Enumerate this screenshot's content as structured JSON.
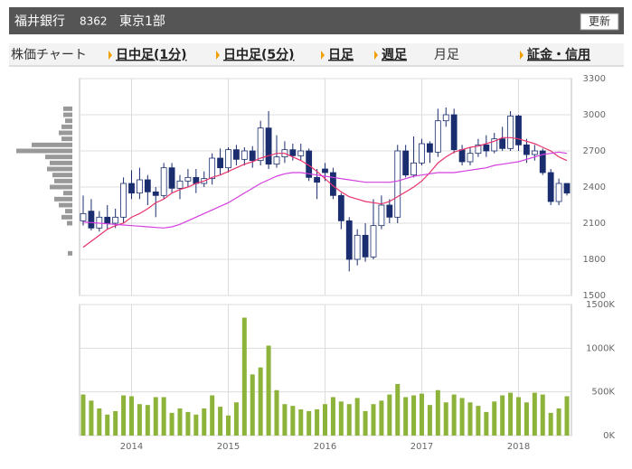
{
  "header": {
    "name": "福井銀行",
    "code": "8362",
    "market": "東京1部",
    "button": "更新"
  },
  "tabs": {
    "label": "株価チャート",
    "items": [
      "日中足(1分)",
      "日中足(5分)",
      "日足",
      "週足",
      "月足",
      "証金・信用"
    ],
    "selected": 4
  },
  "chart_data": [
    {
      "type": "candlestick",
      "categories": [
        null,
        null,
        null,
        null,
        null,
        null,
        "2014",
        null,
        null,
        null,
        null,
        null,
        null,
        null,
        null,
        null,
        null,
        null,
        "2015",
        null,
        null,
        null,
        null,
        null,
        null,
        null,
        null,
        null,
        null,
        null,
        "2016",
        null,
        null,
        null,
        null,
        null,
        null,
        null,
        null,
        null,
        null,
        null,
        "2017",
        null,
        null,
        null,
        null,
        null,
        null,
        null,
        null,
        null,
        null,
        null,
        "2018",
        null,
        null,
        null,
        null,
        null,
        null
      ],
      "open": [
        2120,
        2200,
        2060,
        2150,
        2100,
        2150,
        2430,
        2350,
        2460,
        2360,
        2330,
        2560,
        2390,
        2450,
        2480,
        2430,
        2470,
        2640,
        2560,
        2710,
        2630,
        2700,
        2620,
        2890,
        2590,
        2650,
        2710,
        2660,
        2700,
        2480,
        2550,
        2520,
        2330,
        2120,
        1800,
        2000,
        1820,
        2080,
        2250,
        2150,
        2700,
        2500,
        2600,
        2760,
        2690,
        2950,
        3000,
        2710,
        2610,
        2680,
        2750,
        2700,
        2800,
        2720,
        2990,
        2750,
        2670,
        2700,
        2520,
        2280,
        2430
      ],
      "high": [
        2330,
        2300,
        2200,
        2250,
        2220,
        2480,
        2540,
        2560,
        2500,
        2400,
        2600,
        2600,
        2500,
        2550,
        2550,
        2530,
        2680,
        2720,
        2730,
        2750,
        2730,
        2740,
        2950,
        3030,
        2830,
        2780,
        2760,
        2760,
        2720,
        2550,
        2600,
        2560,
        2350,
        2150,
        2050,
        2100,
        2300,
        2330,
        2300,
        2750,
        2750,
        2820,
        2800,
        2780,
        3050,
        3060,
        3050,
        2750,
        2730,
        2800,
        2830,
        2850,
        2900,
        3030,
        3000,
        2800,
        2750,
        2720,
        2550,
        2470,
        2430
      ],
      "low": [
        2080,
        2040,
        2030,
        2050,
        2060,
        2100,
        2300,
        2300,
        2250,
        2150,
        2300,
        2350,
        2300,
        2400,
        2350,
        2400,
        2420,
        2500,
        2520,
        2580,
        2580,
        2560,
        2580,
        2550,
        2560,
        2600,
        2620,
        2620,
        2450,
        2300,
        2450,
        2300,
        2050,
        1700,
        1750,
        1780,
        1800,
        2050,
        2100,
        2100,
        2480,
        2480,
        2580,
        2600,
        2650,
        2900,
        2680,
        2580,
        2580,
        2650,
        2650,
        2680,
        2700,
        2700,
        2700,
        2600,
        2620,
        2500,
        2250,
        2250,
        2330
      ],
      "close": [
        2180,
        2060,
        2150,
        2100,
        2150,
        2430,
        2350,
        2460,
        2360,
        2330,
        2560,
        2390,
        2450,
        2480,
        2430,
        2470,
        2640,
        2560,
        2710,
        2630,
        2700,
        2620,
        2890,
        2590,
        2650,
        2710,
        2660,
        2700,
        2480,
        2440,
        2520,
        2330,
        2120,
        1800,
        2000,
        1820,
        2080,
        2250,
        2150,
        2700,
        2500,
        2600,
        2760,
        2690,
        2950,
        3000,
        2710,
        2610,
        2680,
        2750,
        2700,
        2800,
        2720,
        2990,
        2750,
        2670,
        2700,
        2520,
        2280,
        2430,
        2350
      ],
      "up_color": "#ffffff",
      "down_color": "#1a2d6e",
      "edge_color": "#1a2d6e",
      "series": [
        {
          "color": "#e8336b",
          "values": [
            1900,
            1950,
            2000,
            2050,
            2080,
            2100,
            2150,
            2180,
            2220,
            2270,
            2300,
            2350,
            2380,
            2400,
            2430,
            2450,
            2480,
            2500,
            2530,
            2560,
            2590,
            2610,
            2640,
            2660,
            2680,
            2680,
            2650,
            2620,
            2580,
            2530,
            2470,
            2410,
            2360,
            2320,
            2300,
            2280,
            2270,
            2260,
            2280,
            2320,
            2360,
            2400,
            2450,
            2520,
            2600,
            2650,
            2690,
            2710,
            2730,
            2740,
            2760,
            2780,
            2810,
            2810,
            2800,
            2780,
            2760,
            2730,
            2700,
            2650,
            2620
          ]
        },
        {
          "color": "#d53ee0",
          "values": [
            2110,
            2105,
            2100,
            2095,
            2090,
            2085,
            2080,
            2075,
            2070,
            2065,
            2060,
            2070,
            2090,
            2120,
            2150,
            2180,
            2210,
            2240,
            2270,
            2310,
            2350,
            2390,
            2430,
            2460,
            2490,
            2510,
            2520,
            2520,
            2510,
            2500,
            2490,
            2480,
            2470,
            2460,
            2450,
            2440,
            2440,
            2440,
            2440,
            2450,
            2470,
            2490,
            2500,
            2510,
            2520,
            2520,
            2520,
            2530,
            2540,
            2550,
            2560,
            2580,
            2590,
            2600,
            2610,
            2630,
            2650,
            2670,
            2680,
            2690,
            2680
          ]
        }
      ],
      "price_volume": {
        "color": "#999999",
        "levels": [
          3050,
          3000,
          2950,
          2900,
          2850,
          2800,
          2750,
          2700,
          2650,
          2600,
          2550,
          2500,
          2450,
          2400,
          2350,
          2300,
          2250,
          2200,
          2150,
          2100,
          1850
        ],
        "values": [
          10,
          10,
          8,
          12,
          15,
          12,
          45,
          62,
          30,
          25,
          28,
          22,
          20,
          25,
          10,
          20,
          15,
          8,
          12,
          6,
          5
        ]
      },
      "ylim": [
        1500,
        3300
      ],
      "yticks": [
        1500,
        1800,
        2100,
        2400,
        2700,
        3000,
        3300
      ],
      "grid": true
    },
    {
      "type": "bar",
      "color": "#8db33a",
      "values": [
        470000,
        400000,
        310000,
        240000,
        280000,
        460000,
        450000,
        360000,
        350000,
        440000,
        440000,
        260000,
        310000,
        270000,
        240000,
        310000,
        460000,
        330000,
        230000,
        380000,
        1350000,
        700000,
        780000,
        1030000,
        520000,
        360000,
        340000,
        300000,
        280000,
        300000,
        360000,
        440000,
        390000,
        360000,
        430000,
        280000,
        360000,
        400000,
        470000,
        590000,
        440000,
        460000,
        480000,
        350000,
        520000,
        380000,
        470000,
        430000,
        380000,
        340000,
        270000,
        390000,
        460000,
        490000,
        440000,
        380000,
        490000,
        470000,
        260000,
        310000,
        450000
      ],
      "ylim": [
        0,
        1500000
      ],
      "yticks": [
        {
          "value": 0,
          "label": "0K"
        },
        {
          "value": 500000,
          "label": "500K"
        },
        {
          "value": 1000000,
          "label": "1000K"
        },
        {
          "value": 1500000,
          "label": "1500K"
        }
      ],
      "grid": true
    }
  ]
}
